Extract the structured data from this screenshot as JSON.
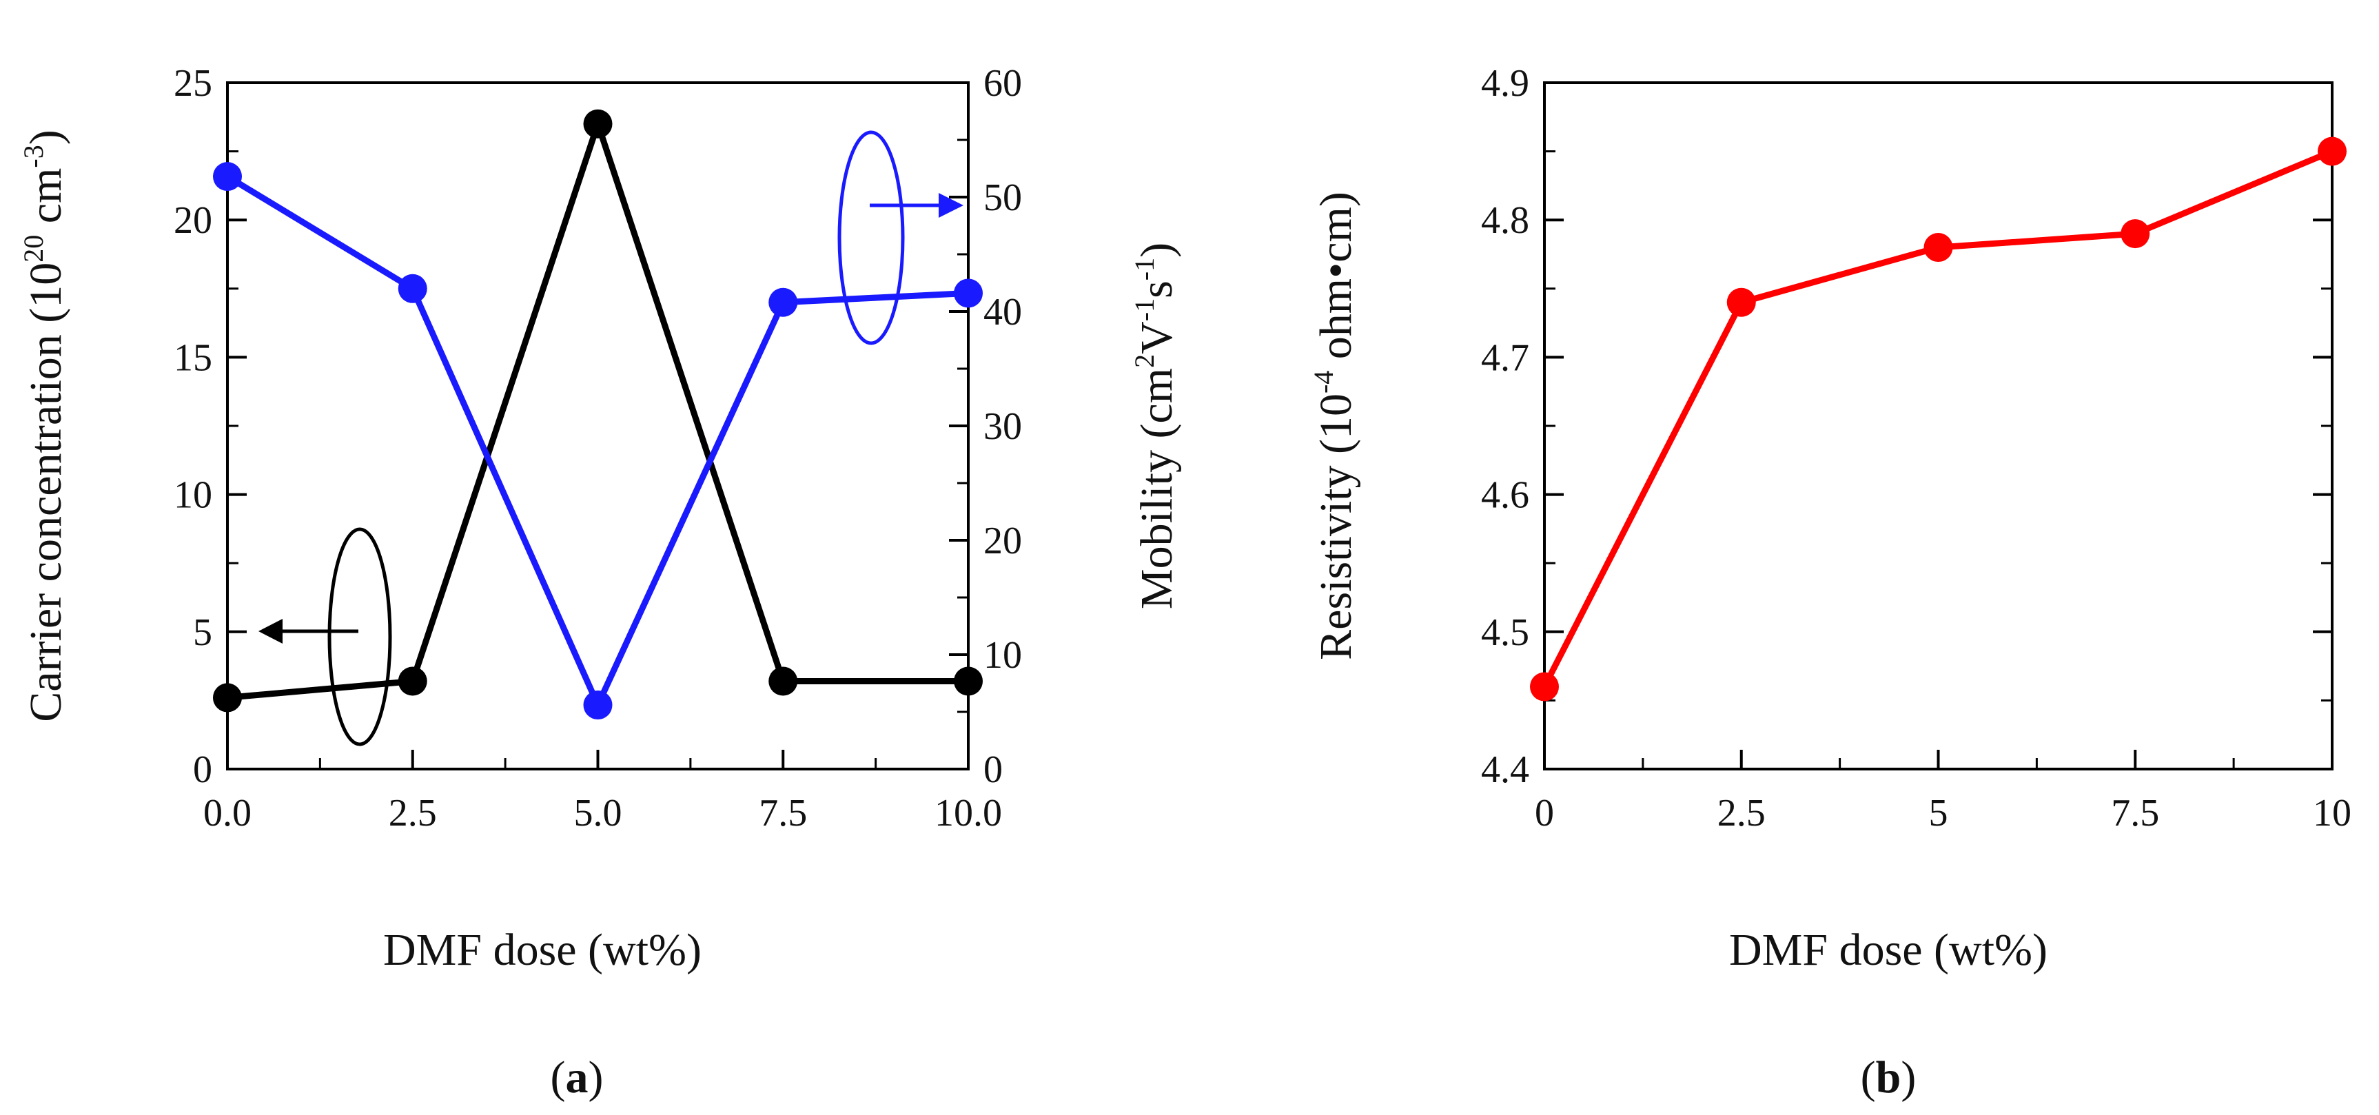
{
  "colors": {
    "carrier": "#000000",
    "mobility": "#1a1aff",
    "resistivity": "#ff0000",
    "axis": "#000000"
  },
  "chart_data": [
    {
      "panel": "a",
      "panel_label": {
        "open": "(",
        "letter": "a",
        "close": ")"
      },
      "type": "line",
      "xlabel": "DMF dose (wt%)",
      "xlim": [
        0,
        10
      ],
      "xticks": [
        0,
        2.5,
        5,
        7.5,
        10
      ],
      "xtick_labels": [
        "0.0",
        "2.5",
        "5.0",
        "7.5",
        "10.0"
      ],
      "ylabel_left": {
        "base": "Carrier concentration (10",
        "sup1": "20",
        "mid": " cm",
        "sup2": "-3",
        "end": ")"
      },
      "ylim_left": [
        0,
        25
      ],
      "yticks_left": [
        0,
        5,
        10,
        15,
        20,
        25
      ],
      "ytick_labels_left": [
        "0",
        "5",
        "10",
        "15",
        "20",
        "25"
      ],
      "ylabel_right": {
        "base": "Mobility (cm",
        "sup1": "2",
        "mid": "V",
        "sup2": "-1",
        "mid2": "s",
        "sup3": "-1",
        "end": ")"
      },
      "ylim_right": [
        0,
        60
      ],
      "yticks_right": [
        0,
        10,
        20,
        30,
        40,
        50,
        60
      ],
      "ytick_labels_right": [
        "0",
        "10",
        "20",
        "30",
        "40",
        "50",
        "60"
      ],
      "series": [
        {
          "name": "Carrier concentration",
          "axis": "left",
          "color": "#000000",
          "x": [
            0,
            2.5,
            5,
            7.5,
            10
          ],
          "values": [
            2.6,
            3.2,
            23.5,
            3.2,
            3.2
          ]
        },
        {
          "name": "Mobility",
          "axis": "right",
          "color": "#1a1aff",
          "x": [
            0,
            2.5,
            5,
            7.5,
            10
          ],
          "values": [
            51.8,
            42.0,
            5.6,
            40.8,
            41.6
          ]
        }
      ],
      "annotations": [
        {
          "name": "carrier-ellipse-arrow",
          "points_to": "left-axis"
        },
        {
          "name": "mobility-ellipse-arrow",
          "points_to": "right-axis"
        }
      ]
    },
    {
      "panel": "b",
      "panel_label": {
        "open": "(",
        "letter": "b",
        "close": ")"
      },
      "type": "line",
      "xlabel": "DMF dose (wt%)",
      "xlim": [
        0,
        10
      ],
      "xticks": [
        0,
        2.5,
        5,
        7.5,
        10
      ],
      "xtick_labels": [
        "0",
        "2.5",
        "5",
        "7.5",
        "10"
      ],
      "ylabel": {
        "base": "Resistivity (10",
        "sup1": "-4",
        "end": " ohm•cm)"
      },
      "ylim": [
        4.4,
        4.9
      ],
      "yticks": [
        4.4,
        4.5,
        4.6,
        4.7,
        4.8,
        4.9
      ],
      "ytick_labels": [
        "4.4",
        "4.5",
        "4.6",
        "4.7",
        "4.8",
        "4.9"
      ],
      "series": [
        {
          "name": "Resistivity",
          "color": "#ff0000",
          "x": [
            0,
            2.5,
            5,
            7.5,
            10
          ],
          "values": [
            4.46,
            4.74,
            4.78,
            4.79,
            4.85
          ]
        }
      ]
    }
  ]
}
